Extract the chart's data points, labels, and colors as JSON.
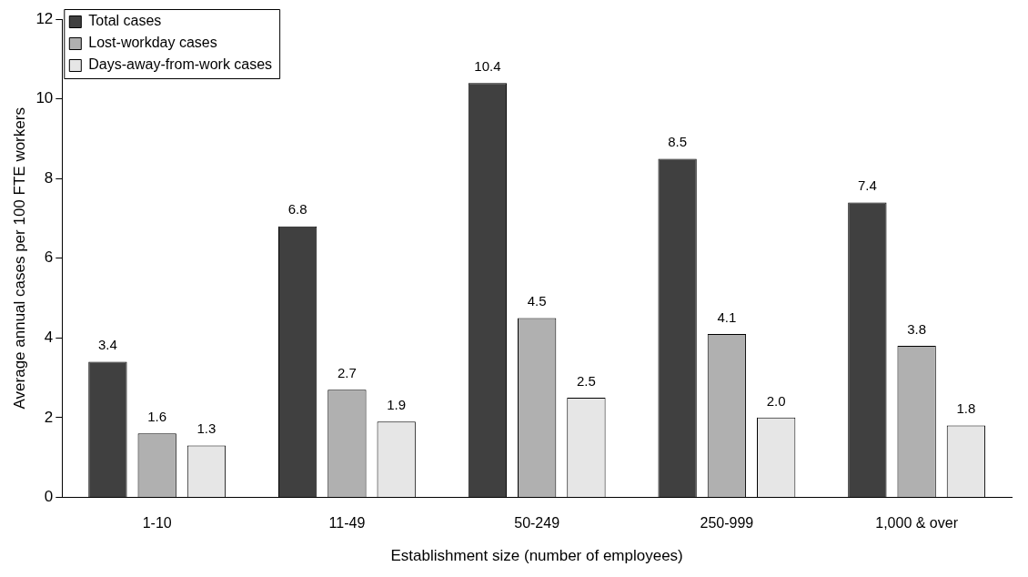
{
  "chart_data": {
    "type": "bar",
    "xlabel": "Establishment size (number of employees)",
    "ylabel": "Average annual cases per 100 FTE workers",
    "categories": [
      "1-10",
      "11-49",
      "50-249",
      "250-999",
      "1,000 & over"
    ],
    "series": [
      {
        "name": "Total cases",
        "color": "#404040",
        "values": [
          3.4,
          6.8,
          10.4,
          8.5,
          7.4
        ],
        "value_labels": [
          "3.4",
          "6.8",
          "10.4",
          "8.5",
          "7.4"
        ]
      },
      {
        "name": "Lost-workday cases",
        "color": "#b0b0b0",
        "values": [
          1.6,
          2.7,
          4.5,
          4.1,
          3.8
        ],
        "value_labels": [
          "1.6",
          "2.7",
          "4.5",
          "4.1",
          "3.8"
        ]
      },
      {
        "name": "Days-away-from-work cases",
        "color": "#e6e6e6",
        "values": [
          1.3,
          1.9,
          2.5,
          2.0,
          1.8
        ],
        "value_labels": [
          "1.3",
          "1.9",
          "2.5",
          "2.0",
          "1.8"
        ]
      }
    ],
    "ylim": [
      0,
      12
    ],
    "yticks": [
      0,
      2,
      4,
      6,
      8,
      10,
      12
    ],
    "grid": false,
    "legend": "top left"
  }
}
